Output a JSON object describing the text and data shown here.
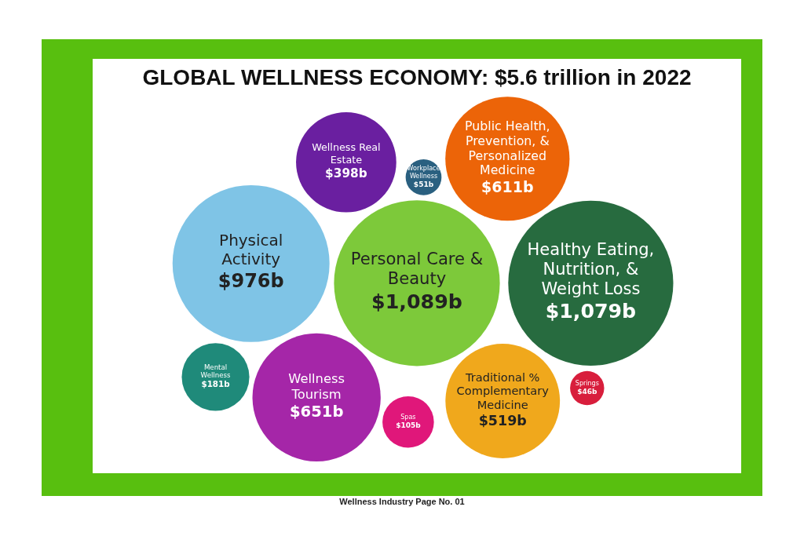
{
  "chart_data": {
    "type": "other",
    "title": "GLOBAL WELLNESS ECONOMY: $5.6 trillion in 2022",
    "categories": [
      "Traditional % Complementary Medicine",
      "Mental Wellness",
      "Wellness Real Estate",
      "Wellness Tourism",
      "Personal Care & Beauty",
      "Public Health, Prevention, & Personalized Medicine",
      "Workplace Wellness",
      "Springs",
      "Spas",
      "Healthy Eating, Nutrition, & Weight Loss",
      "Physical Activity"
    ],
    "values": [
      519,
      181,
      398,
      651,
      1089,
      611,
      51,
      46,
      105,
      1079,
      976
    ],
    "value_labels": [
      "$519b",
      "$181b",
      "$398b",
      "$651b",
      "$1,089b",
      "$611b",
      "$51b",
      "$46b",
      "$105b",
      "$1,079b",
      "$976b"
    ],
    "colors": [
      "#f0a81c",
      "#1f8a7a",
      "#6a1fa0",
      "#a526a8",
      "#7dc93a",
      "#ec6408",
      "#2a6080",
      "#d81e3c",
      "#e0177a",
      "#276b3f",
      "#7fc4e6"
    ],
    "annotations": [
      "Wellness Industry Page No. 01"
    ]
  }
}
